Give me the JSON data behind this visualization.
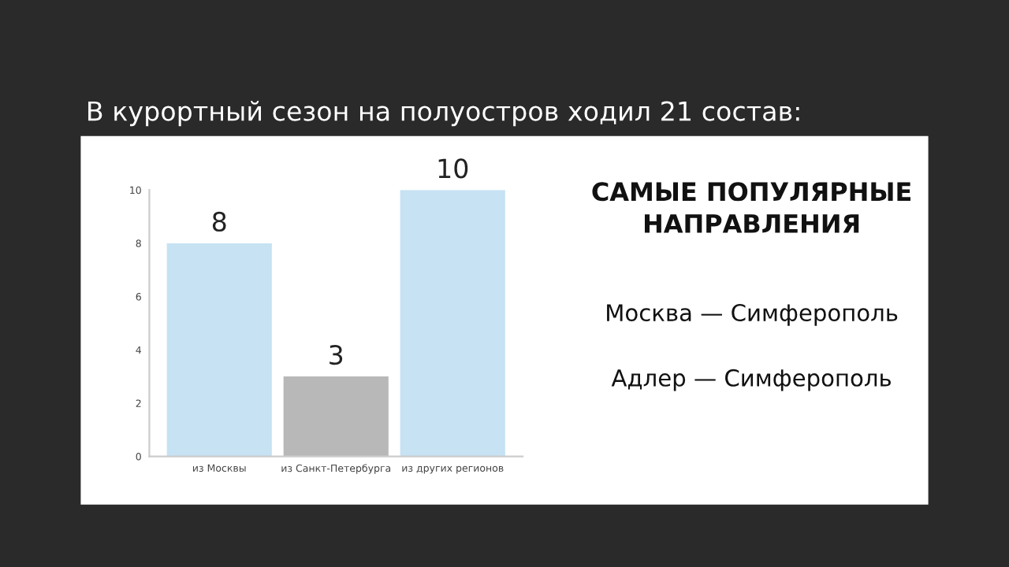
{
  "chart_data": {
    "type": "bar",
    "title": "В курортный сезон на полуостров ходил 21 состав:",
    "categories": [
      "из Москвы",
      "из Санкт-Петербурга",
      "из других регионов"
    ],
    "values": [
      8,
      3,
      10
    ],
    "colors": [
      "#c6e2f3",
      "#b8b8b8",
      "#c6e2f3"
    ],
    "ylim": [
      0,
      10
    ],
    "yticks": [
      0,
      2,
      4,
      6,
      8,
      10
    ],
    "grid": false,
    "data_labels": true,
    "annotations": [
      "САМЫЕ ПОПУЛЯРНЫЕ\nНАПРАВЛЕНИЯ",
      "Москва — Симферополь",
      "Адлер — Симферополь"
    ]
  }
}
